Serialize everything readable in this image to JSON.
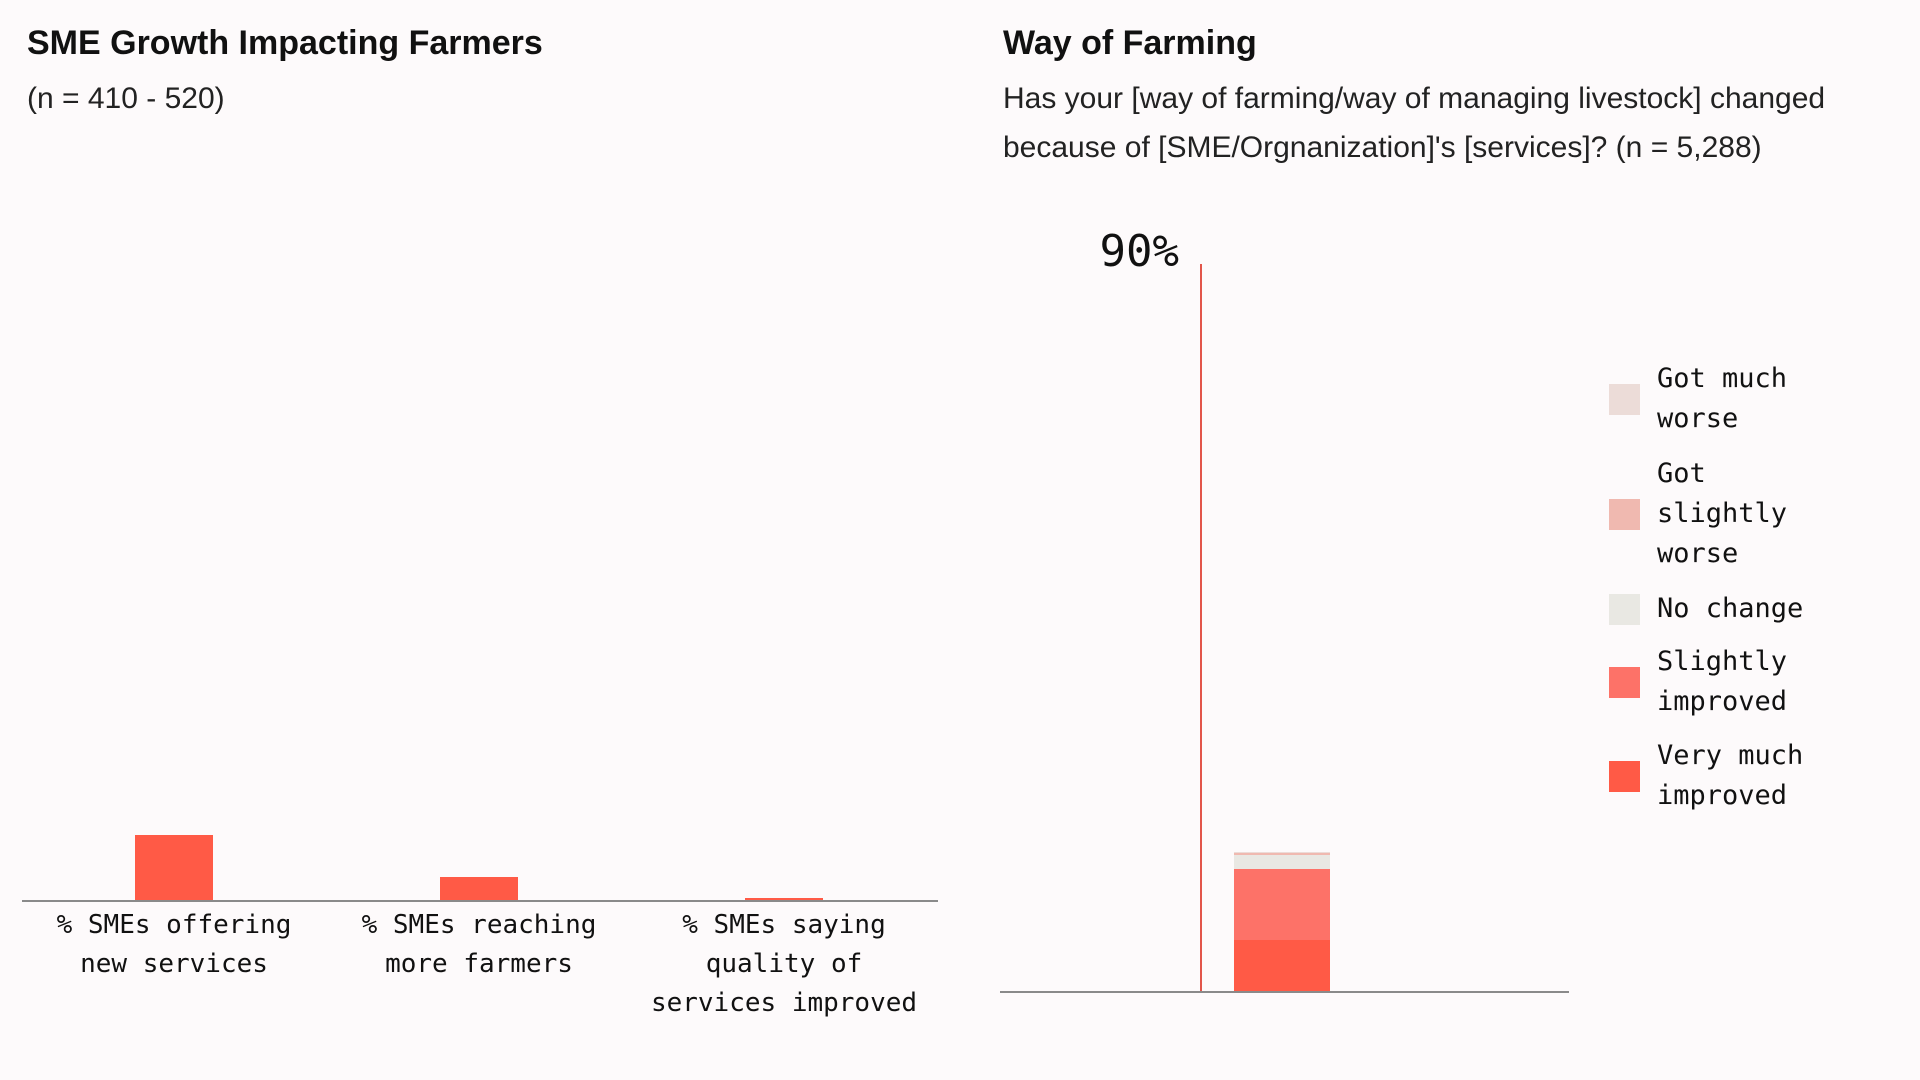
{
  "left": {
    "title": "SME Growth Impacting Farmers",
    "subtitle": "(n = 410 - 520)"
  },
  "right": {
    "title": "Way of Farming",
    "subtitle_line1": "Has your [way of farming/way of managing livestock] changed",
    "subtitle_line2": "because of [SME/Orgnanization]'s [services]? (n = 5,288)",
    "reference_label": "90%"
  },
  "chart_data": [
    {
      "type": "bar",
      "title": "SME Growth Impacting Farmers",
      "categories": [
        "% SMEs offering\nnew services",
        "% SMEs reaching\nmore farmers",
        "% SMEs saying\nquality of\nservices improved"
      ],
      "values": [
        9,
        3.2,
        0.3
      ],
      "ylim": [
        0,
        100
      ],
      "color": "#ff5a46"
    },
    {
      "type": "bar",
      "stacked": true,
      "title": "Way of Farming",
      "reference_value": 90,
      "ylim": [
        0,
        90
      ],
      "legend_position": "right",
      "series": [
        {
          "name": "Very much\nimproved",
          "value": 6.2,
          "color": "#ff5a46"
        },
        {
          "name": "Slightly\nimproved",
          "value": 8.6,
          "color": "#fd7268"
        },
        {
          "name": "No change",
          "value": 1.7,
          "color": "#e9e8e3"
        },
        {
          "name": "Got\nslightly\nworse",
          "value": 0.2,
          "color": "#f0b9b0"
        },
        {
          "name": "Got much\nworse",
          "value": 0.1,
          "color": "#ecdcd8"
        }
      ]
    }
  ]
}
